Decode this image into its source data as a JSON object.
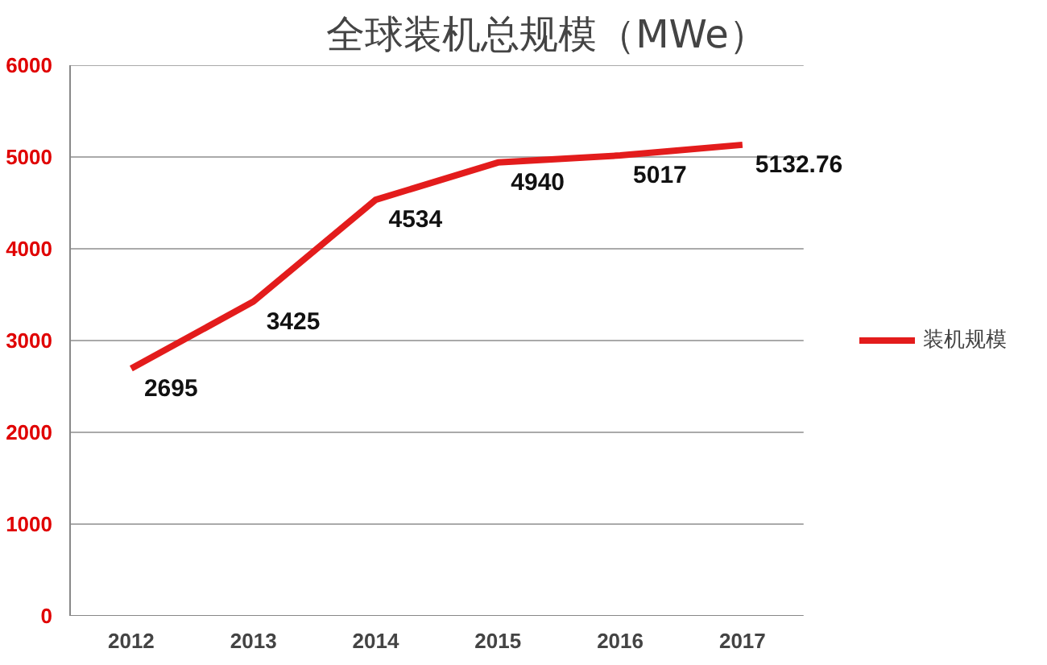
{
  "chart_data": {
    "type": "line",
    "title": "全球装机总规模（MWe）",
    "categories": [
      "2012",
      "2013",
      "2014",
      "2015",
      "2016",
      "2017"
    ],
    "series": [
      {
        "name": "装机规模",
        "color": "#e31c1c",
        "values": [
          2695,
          3425,
          4534,
          4940,
          5017,
          5132.76
        ]
      }
    ],
    "ylim": [
      0,
      6000
    ],
    "yticks": [
      0,
      1000,
      2000,
      3000,
      4000,
      5000,
      6000
    ],
    "grid": "y",
    "legend": "right",
    "data_labels": true,
    "marker": "none",
    "line_style": "solid"
  }
}
